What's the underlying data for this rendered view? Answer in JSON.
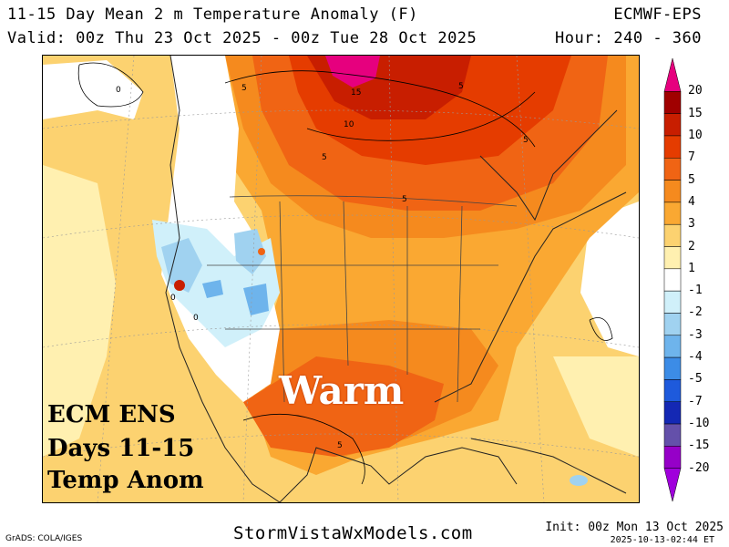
{
  "header": {
    "title": "11-15 Day Mean 2 m Temperature Anomaly (F)",
    "valid": "Valid: 00z Thu 23 Oct 2025 - 00z Tue 28 Oct 2025",
    "model": "ECMWF-EPS",
    "hour": "Hour: 240 - 360"
  },
  "overlay": {
    "line1": "ECM ENS",
    "line2": "Days 11-15",
    "line3": "Temp Anom",
    "warm": "Warm"
  },
  "contour_labels": [
    "5",
    "15",
    "5",
    "10",
    "5",
    "5",
    "5",
    "0",
    "0",
    "0",
    "5"
  ],
  "legend": {
    "levels": [
      "20",
      "15",
      "10",
      "7",
      "5",
      "4",
      "3",
      "2",
      "1",
      "-1",
      "-2",
      "-3",
      "-4",
      "-5",
      "-7",
      "-10",
      "-15",
      "-20"
    ],
    "colors": [
      "#e6007e",
      "#a00000",
      "#c81e00",
      "#e53c00",
      "#f06414",
      "#f58a1e",
      "#faa832",
      "#fcd270",
      "#fff0b0",
      "#ffffff",
      "#d0f0fa",
      "#a0d2f0",
      "#6eb4ec",
      "#3c8ce6",
      "#1e5adc",
      "#1428b4",
      "#6450aa",
      "#9600c8",
      "#a000dc"
    ]
  },
  "footer": {
    "grads": "GrADS: COLA/IGES",
    "site": "StormVistaWxModels.com",
    "init": "Init: 00z Mon 13 Oct 2025",
    "stamp": "2025-10-13-02:44 ET"
  }
}
